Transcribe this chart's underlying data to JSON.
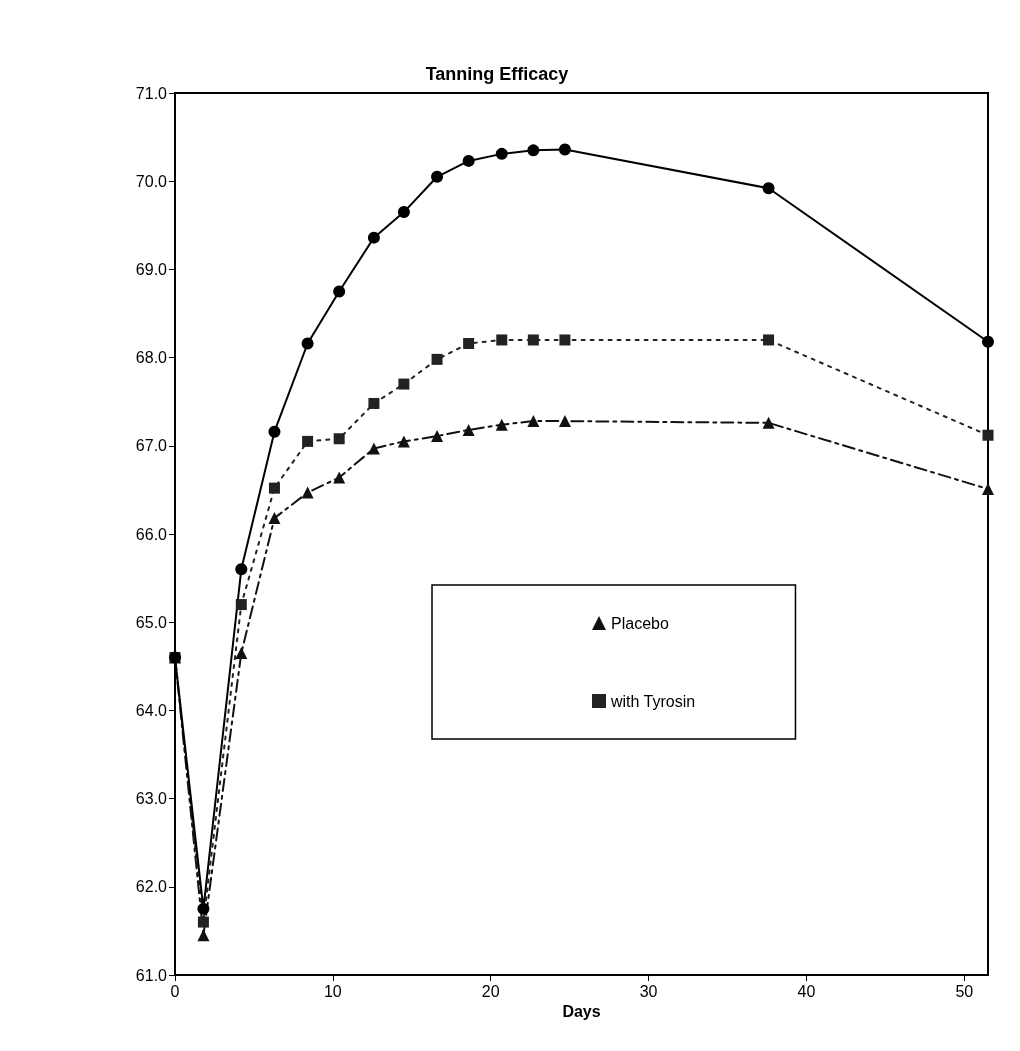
{
  "chart_data": {
    "type": "line",
    "title": "Tanning Efficacy",
    "xlabel": "Days",
    "x": [
      0,
      1.8,
      4.2,
      6.3,
      8.4,
      10.4,
      12.6,
      14.5,
      16.6,
      18.6,
      20.7,
      22.7,
      24.7,
      37.6,
      51.5
    ],
    "series": [
      {
        "name": "Placebo",
        "color": "#111111",
        "marker": "triangle",
        "line_style": "dashed",
        "values": [
          64.6,
          61.45,
          64.65,
          66.18,
          66.47,
          66.64,
          66.97,
          67.05,
          67.11,
          67.18,
          67.24,
          67.28,
          67.28,
          67.26,
          66.51
        ]
      },
      {
        "name": "with Tyrosin",
        "color": "#222222",
        "marker": "square",
        "line_style": "dotted",
        "values": [
          64.6,
          61.6,
          65.2,
          66.52,
          67.05,
          67.08,
          67.48,
          67.7,
          67.98,
          68.16,
          68.2,
          68.2,
          68.2,
          68.2,
          67.12
        ]
      },
      {
        "color": "#000000",
        "marker": "circle",
        "line_style": "solid",
        "values": [
          64.6,
          61.75,
          65.6,
          67.16,
          68.16,
          68.75,
          69.36,
          69.65,
          70.05,
          70.23,
          70.31,
          70.35,
          70.36,
          69.92,
          68.18
        ]
      }
    ],
    "xlim": [
      0,
      51.5
    ],
    "xticks": [
      0,
      10,
      20,
      30,
      40,
      50
    ],
    "ylim": [
      61,
      71
    ],
    "yticks": [
      {
        "value": 61,
        "label": "61.0"
      },
      {
        "value": 62,
        "label": "62.0"
      },
      {
        "value": 63,
        "label": "63.0"
      },
      {
        "value": 64,
        "label": "64.0"
      },
      {
        "value": 65,
        "label": "65.0"
      },
      {
        "value": 66,
        "label": "66.0"
      },
      {
        "value": 67,
        "label": "67.0"
      },
      {
        "value": 68,
        "label": "68.0"
      },
      {
        "value": 69,
        "label": "69.0"
      },
      {
        "value": 70,
        "label": "70.0"
      },
      {
        "value": 71,
        "label": "71.0"
      }
    ],
    "grid": false,
    "legend": "bottom right"
  }
}
